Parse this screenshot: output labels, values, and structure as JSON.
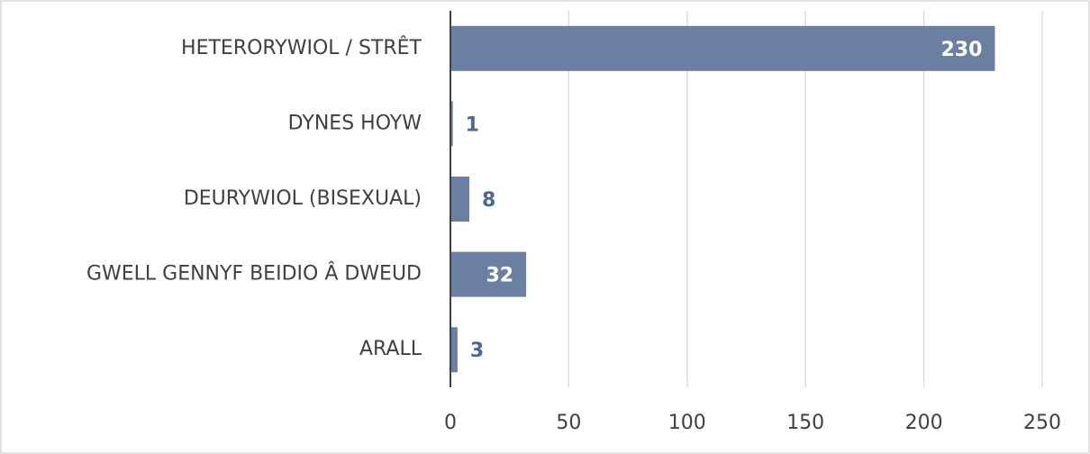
{
  "chart_data": {
    "type": "bar",
    "orientation": "horizontal",
    "categories": [
      "HETERORYWIOL / STRÊT",
      "DYNES HOYW",
      "DEURYWIOL (BISEXUAL)",
      "GWELL GENNYF BEIDIO Â DWEUD",
      "ARALL"
    ],
    "values": [
      230,
      1,
      8,
      32,
      3
    ],
    "color": "#6b7fa3",
    "label_color": "#4d6797",
    "xlim": [
      0,
      250
    ],
    "xticks": [
      0,
      50,
      100,
      150,
      200,
      250
    ],
    "grid": true
  }
}
